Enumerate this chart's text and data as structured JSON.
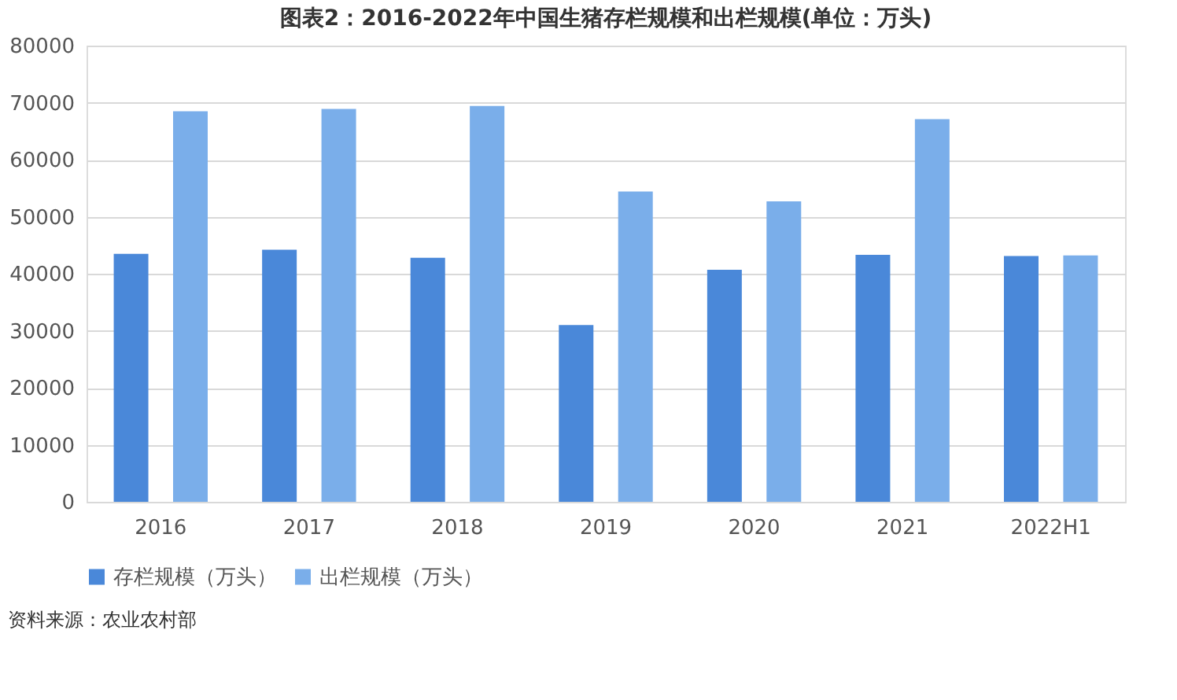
{
  "chart_data": {
    "type": "bar",
    "title": "图表2：2016-2022年中国生猪存栏规模和出栏规模(单位：万头)",
    "categories": [
      "2016",
      "2017",
      "2018",
      "2019",
      "2020",
      "2021",
      "2022H1"
    ],
    "series": [
      {
        "name": "存栏规模（万头）",
        "color": "#4a88d9",
        "values": [
          43500,
          44200,
          42800,
          31000,
          40700,
          43300,
          43100
        ]
      },
      {
        "name": "出栏规模（万头）",
        "color": "#7aaeea",
        "values": [
          68500,
          68900,
          69400,
          54400,
          52700,
          67100,
          43200
        ]
      }
    ],
    "ylim": [
      0,
      80000
    ],
    "yticks": [
      0,
      10000,
      20000,
      30000,
      40000,
      50000,
      60000,
      70000,
      80000
    ],
    "grid": "y",
    "legend": "bottom",
    "annotations": [
      "资料来源：农业农村部"
    ]
  }
}
